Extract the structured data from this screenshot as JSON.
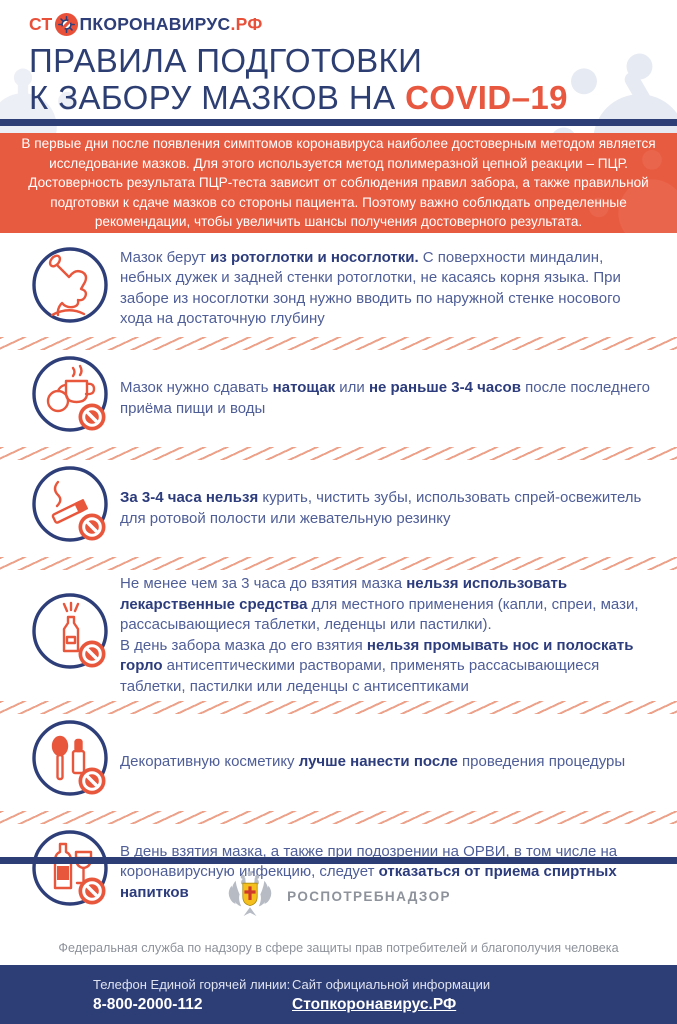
{
  "colors": {
    "navy": "#2d3d76",
    "accent_orange": "#e8563c",
    "intro_background": "#e75b41",
    "hatch_stripe": "#eda189",
    "body_text": "#4f5e97",
    "muted_gray": "#8d929b"
  },
  "header": {
    "logo": {
      "prefix": "СТ",
      "icon": "stop-virus-icon",
      "middle": "ПКОРОНАВИРУС",
      "suffix": ".РФ"
    },
    "title_line1": "ПРАВИЛА ПОДГОТОВКИ",
    "title_line2_prefix": "К ЗАБОРУ МАЗКОВ НА ",
    "title_line2_highlight": "COVID–19"
  },
  "intro": {
    "text": "В первые дни после появления симптомов коронавируса наиболее достоверным методом является исследование мазков. Для этого используется метод полимеразной цепной реакции – ПЦР. Достоверность результата ПЦР-теста зависит от соблюдения правил забора, а также правильной подготовки к сдаче мазков со стороны пациента. Поэтому важно соблюдать определенные рекомендации, чтобы увеличить шансы получения достоверного результата."
  },
  "rules": [
    {
      "icon": "swab-person-icon",
      "prohibition_badge": false,
      "segments": [
        {
          "b": false,
          "t": "Мазок берут "
        },
        {
          "b": true,
          "t": "из ротоглотки и носоглотки."
        },
        {
          "b": false,
          "t": " С поверхности миндалин, небных дужек и задней стенки ротоглотки, не касаясь корня языка. При заборе из носоглотки зонд нужно вводить по наружной стенке носового хода на достаточную глубину"
        }
      ]
    },
    {
      "icon": "food-drink-icon",
      "prohibition_badge": true,
      "segments": [
        {
          "b": false,
          "t": "Мазок нужно сдавать "
        },
        {
          "b": true,
          "t": "натощак"
        },
        {
          "b": false,
          "t": " или "
        },
        {
          "b": true,
          "t": "не раньше 3-4 часов"
        },
        {
          "b": false,
          "t": " после последнего приёма пищи и воды"
        }
      ]
    },
    {
      "icon": "cigarette-icon",
      "prohibition_badge": true,
      "segments": [
        {
          "b": true,
          "t": "За 3-4 часа нельзя"
        },
        {
          "b": false,
          "t": " курить, чистить зубы, использовать спрей-освежитель для ротовой полости или жевательную резинку"
        }
      ]
    },
    {
      "icon": "nasal-spray-icon",
      "prohibition_badge": true,
      "segments": [
        {
          "b": false,
          "t": "Не менее чем за 3 часа до взятия мазка "
        },
        {
          "b": true,
          "t": "нельзя использовать лекарственные средства"
        },
        {
          "b": false,
          "t": " для местного применения (капли, спреи, мази, рассасывающиеся таблетки, леденцы или пастилки)."
        },
        {
          "br": true
        },
        {
          "b": false,
          "t": "В день забора мазка до его взятия "
        },
        {
          "b": true,
          "t": "нельзя промывать нос и полоскать горло"
        },
        {
          "b": false,
          "t": " антисептическими растворами, применять рассасывающиеся таблетки, пастилки или леденцы с антисептиками"
        }
      ]
    },
    {
      "icon": "cosmetics-icon",
      "prohibition_badge": true,
      "segments": [
        {
          "b": false,
          "t": "Декоративную косметику "
        },
        {
          "b": true,
          "t": "лучше нанести после"
        },
        {
          "b": false,
          "t": " проведения процедуры"
        }
      ]
    },
    {
      "icon": "alcohol-icon",
      "prohibition_badge": true,
      "segments": [
        {
          "b": false,
          "t": "В день взятия мазка, а также при подозрении на ОРВИ, в том числе на коронавирусную инфекцию, следует "
        },
        {
          "b": true,
          "t": "отказаться от приема спиртных напитков"
        }
      ]
    }
  ],
  "agency": {
    "emblem_icon": "rospotrebnadzor-eagle-icon",
    "name": "РОСПОТРЕБНАДЗОР",
    "description": "Федеральная служба по надзору в сфере защиты прав потребителей и благополучия человека"
  },
  "footer": {
    "hotline_label": "Телефон Единой горячей линии:",
    "hotline_number": "8-800-2000-112",
    "site_label": "Сайт официальной информации",
    "site_name": "Стопкоронавирус.РФ"
  }
}
